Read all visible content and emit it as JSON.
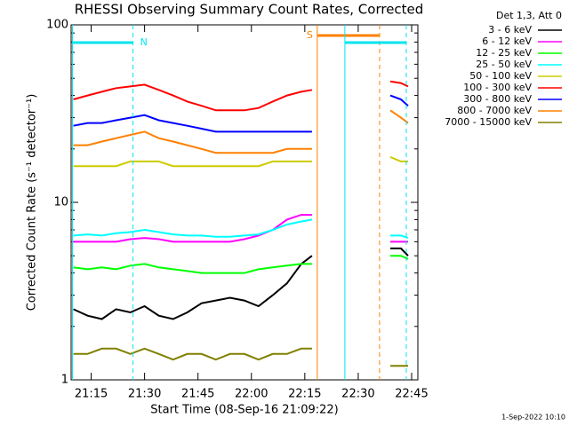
{
  "chart_data": {
    "type": "line",
    "title": "RHESSI Observing Summary Count Rates, Corrected",
    "x_label": "Start Time (08-Sep-16 21:09:22)",
    "y_label": "Corrected Count Rate (s⁻¹ detector⁻¹)",
    "legend_title": "Det 1,3, Att 0",
    "timestamp": "1-Sep-2022 10:10",
    "log_y": true,
    "legend": "outside-right",
    "xlim": [
      9.37,
      106.75
    ],
    "xticks": [
      {
        "value": 15,
        "label": "21:15"
      },
      {
        "value": 30,
        "label": "21:30"
      },
      {
        "value": 45,
        "label": "21:45"
      },
      {
        "value": 60,
        "label": "22:00"
      },
      {
        "value": 75,
        "label": "22:15"
      },
      {
        "value": 90,
        "label": "22:30"
      },
      {
        "value": 105,
        "label": "22:45"
      }
    ],
    "ylim": [
      1,
      100
    ],
    "yticks": [
      1,
      10,
      100
    ],
    "yminor_ticks": [
      2,
      3,
      4,
      5,
      6,
      7,
      8,
      9,
      20,
      30,
      40,
      50,
      60,
      70,
      80,
      90
    ],
    "x": [
      10,
      14,
      18,
      22,
      26,
      30,
      34,
      38,
      42,
      46,
      50,
      54,
      58,
      62,
      66,
      70,
      74,
      77,
      88,
      99,
      102,
      104
    ],
    "series": [
      {
        "name": "3 - 6 keV",
        "color": "#000000",
        "values": [
          2.5,
          2.3,
          2.2,
          2.5,
          2.4,
          2.6,
          2.3,
          2.2,
          2.4,
          2.7,
          2.8,
          2.9,
          2.8,
          2.6,
          3,
          3.5,
          4.5,
          5,
          null,
          5.5,
          5.5,
          5
        ]
      },
      {
        "name": "6 - 12 keV",
        "color": "#ff00ff",
        "values": [
          6,
          6,
          6,
          6,
          6.2,
          6.3,
          6.2,
          6,
          6,
          6,
          6,
          6,
          6.2,
          6.5,
          7,
          8,
          8.5,
          8.5,
          null,
          6,
          6,
          6
        ]
      },
      {
        "name": "12 - 25 keV",
        "color": "#00ff00",
        "values": [
          4.3,
          4.2,
          4.3,
          4.2,
          4.4,
          4.5,
          4.3,
          4.2,
          4.1,
          4,
          4,
          4,
          4,
          4.2,
          4.3,
          4.4,
          4.5,
          4.5,
          null,
          5,
          5,
          4.8
        ]
      },
      {
        "name": "25 - 50 keV",
        "color": "#00ffff",
        "values": [
          6.5,
          6.6,
          6.5,
          6.7,
          6.8,
          7,
          6.8,
          6.6,
          6.5,
          6.5,
          6.4,
          6.4,
          6.5,
          6.6,
          7,
          7.5,
          7.8,
          8,
          null,
          6.5,
          6.5,
          6.3
        ]
      },
      {
        "name": "50 - 100 keV",
        "color": "#cccc00",
        "values": [
          16,
          16,
          16,
          16,
          17,
          17,
          17,
          16,
          16,
          16,
          16,
          16,
          16,
          16,
          17,
          17,
          17,
          17,
          null,
          18,
          17,
          17
        ]
      },
      {
        "name": "100 - 300 keV",
        "color": "#ff0000",
        "values": [
          38,
          40,
          42,
          44,
          45,
          46,
          43,
          40,
          37,
          35,
          33,
          33,
          33,
          34,
          37,
          40,
          42,
          43,
          null,
          48,
          47,
          45
        ]
      },
      {
        "name": "300 - 800 keV",
        "color": "#0000ff",
        "values": [
          27,
          28,
          28,
          29,
          30,
          31,
          29,
          28,
          27,
          26,
          25,
          25,
          25,
          25,
          25,
          25,
          25,
          25,
          null,
          40,
          38,
          35
        ]
      },
      {
        "name": "800 - 7000 keV",
        "color": "#ff8000",
        "values": [
          21,
          21,
          22,
          23,
          24,
          25,
          23,
          22,
          21,
          20,
          19,
          19,
          19,
          19,
          19,
          20,
          20,
          20,
          null,
          33,
          30,
          28
        ]
      },
      {
        "name": "7000 - 15000 keV",
        "color": "#808000",
        "values": [
          1.4,
          1.4,
          1.5,
          1.5,
          1.4,
          1.5,
          1.4,
          1.3,
          1.4,
          1.4,
          1.3,
          1.4,
          1.4,
          1.3,
          1.4,
          1.4,
          1.5,
          1.5,
          null,
          1.2,
          1.2,
          1.2
        ]
      }
    ],
    "periods": [
      {
        "label": "N",
        "color": "#00e5ee",
        "start": 9.75,
        "end": 26.75
      },
      {
        "label": "S",
        "color": "#ff8000",
        "start": 78.5,
        "end": 96
      },
      {
        "color": "#00e5ee",
        "start": 86.25,
        "end": 103.5
      }
    ]
  }
}
